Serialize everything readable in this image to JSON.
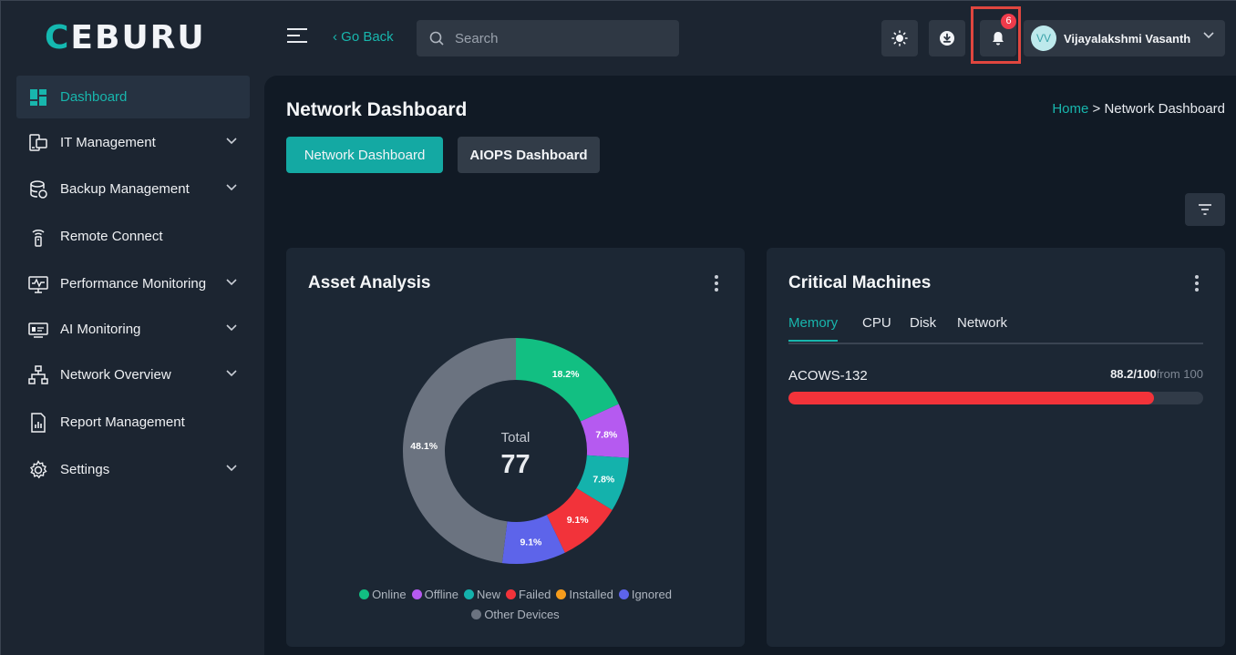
{
  "header": {
    "logo": "CEBURU",
    "go_back": "‹ Go Back",
    "search_placeholder": "Search",
    "notifications_count": "6",
    "user": {
      "initials": "VV",
      "name": "Vijayalakshmi Vasanth"
    }
  },
  "sidebar": {
    "items": [
      {
        "label": "Dashboard",
        "icon": "grid-icon",
        "active": true
      },
      {
        "label": "IT Management",
        "icon": "devices-icon"
      },
      {
        "label": "Backup Management",
        "icon": "database-icon"
      },
      {
        "label": "Remote Connect",
        "icon": "remote-icon"
      },
      {
        "label": "Performance Monitoring",
        "icon": "monitor-icon"
      },
      {
        "label": "AI Monitoring",
        "icon": "ai-monitor-icon"
      },
      {
        "label": "Network Overview",
        "icon": "network-icon"
      },
      {
        "label": "Report Management",
        "icon": "report-icon"
      },
      {
        "label": "Settings",
        "icon": "gear-icon"
      }
    ]
  },
  "main": {
    "title": "Network Dashboard",
    "breadcrumb": {
      "home": "Home",
      "separator": " > ",
      "current": "Network Dashboard"
    },
    "tabs": [
      {
        "label": "Network Dashboard"
      },
      {
        "label": "AIOPS Dashboard"
      }
    ]
  },
  "asset_analysis": {
    "title": "Asset Analysis",
    "total_label": "Total",
    "total_value": "77"
  },
  "chart_data": {
    "type": "pie",
    "categories": [
      "Online",
      "Offline",
      "New",
      "Failed",
      "Installed",
      "Ignored",
      "Other Devices"
    ],
    "values": [
      18.2,
      7.8,
      7.8,
      9.1,
      0,
      9.1,
      48.1
    ],
    "labels": [
      "18.2%",
      "7.8%",
      "7.8%",
      "9.1%",
      "",
      "9.1%",
      "48.1%"
    ],
    "colors": [
      "#12bf82",
      "#b55af0",
      "#14b2ac",
      "#f2333a",
      "#f59c1c",
      "#5d64ea",
      "#6b7380"
    ],
    "legend_position": "bottom"
  },
  "critical_machines": {
    "title": "Critical Machines",
    "tabs": [
      "Memory",
      "CPU",
      "Disk",
      "Network"
    ],
    "machine": {
      "name": "ACOWS-132",
      "value": "88.2/100",
      "from": "from 100",
      "percent": 88.2
    }
  }
}
